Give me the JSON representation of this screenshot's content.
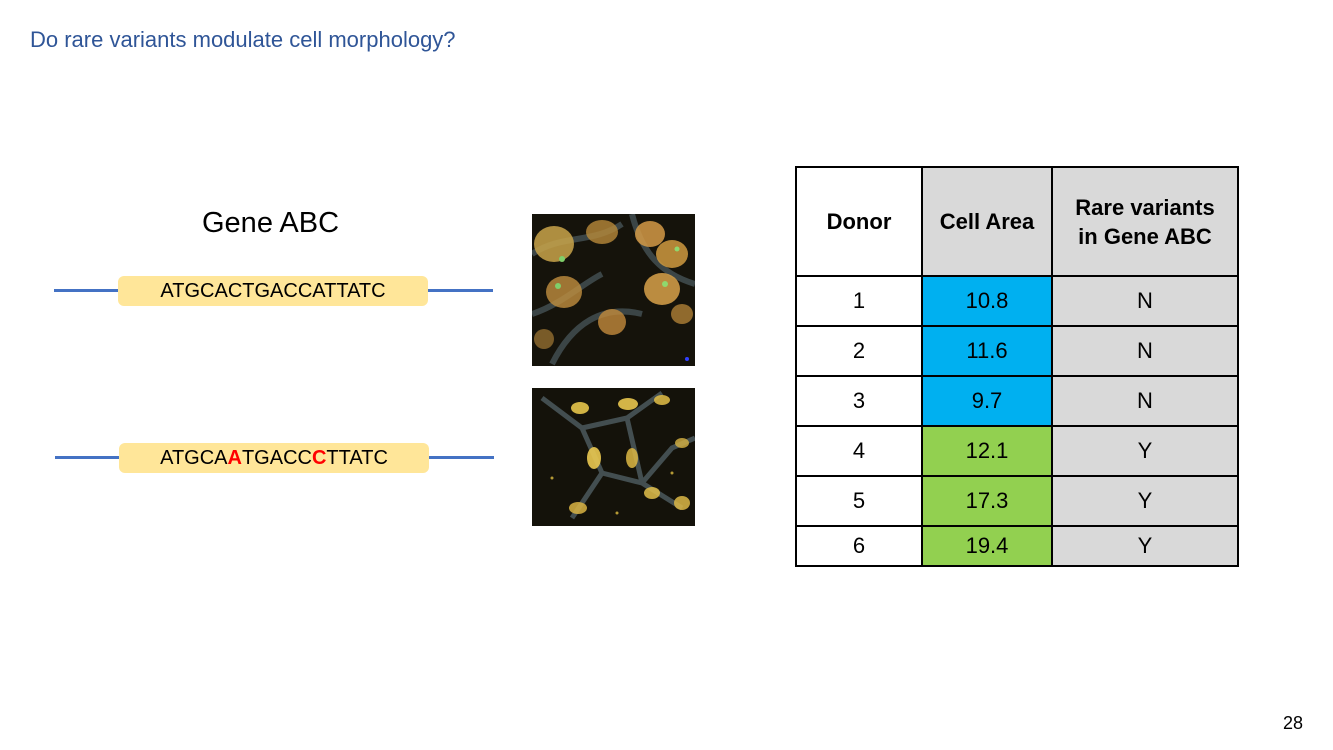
{
  "slide": {
    "title": "Do rare variants modulate cell morphology?",
    "page_number": "28"
  },
  "gene": {
    "title": "Gene ABC",
    "reference_sequence": "ATGCACTGACCATTATC",
    "variant_sequence": {
      "part1": "ATGCA",
      "mut1": "A",
      "part2": "TGACC",
      "mut2": "C",
      "part3": "TTATC"
    }
  },
  "table": {
    "headers": {
      "donor": "Donor",
      "cell_area": "Cell Area",
      "rare_line1": "Rare variants",
      "rare_line2": "in Gene ABC"
    },
    "rows": [
      {
        "donor": "1",
        "cell_area": "10.8",
        "rare": "N",
        "color": "#00b0f0"
      },
      {
        "donor": "2",
        "cell_area": "11.6",
        "rare": "N",
        "color": "#00b0f0"
      },
      {
        "donor": "3",
        "cell_area": "9.7",
        "rare": "N",
        "color": "#00b0f0"
      },
      {
        "donor": "4",
        "cell_area": "12.1",
        "rare": "Y",
        "color": "#92d050"
      },
      {
        "donor": "5",
        "cell_area": "17.3",
        "rare": "Y",
        "color": "#92d050"
      },
      {
        "donor": "6",
        "cell_area": "19.4",
        "rare": "Y",
        "color": "#92d050"
      }
    ]
  },
  "colors": {
    "title": "#2f5597",
    "dna_line": "#4472c4",
    "sequence_box": "#ffe699",
    "mutation": "#ff0000",
    "header_fill": "#d9d9d9"
  }
}
